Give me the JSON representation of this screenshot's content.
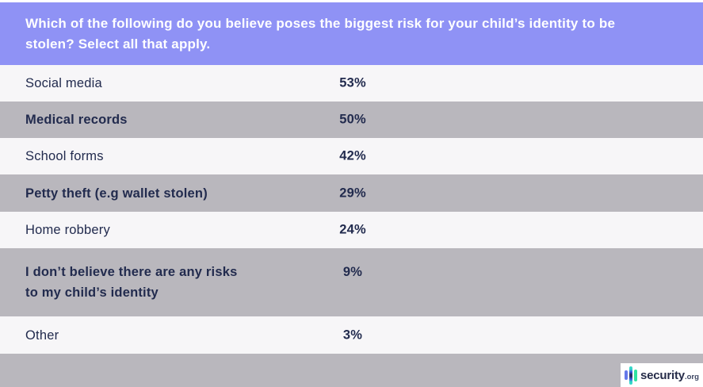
{
  "header": {
    "question_line1": "Which of the following do you believe poses the biggest risk for your child’s identity to be",
    "question_line2": "stolen? Select all that apply."
  },
  "chart_data": {
    "type": "table",
    "title": "Which of the following do you believe poses the biggest risk for your child’s identity to be stolen? Select all that apply.",
    "categories": [
      "Social media",
      "Medical records",
      "School forms",
      "Petty theft (e.g wallet stolen)",
      "Home robbery",
      "I don’t believe there are any risks to my child’s identity",
      "Other"
    ],
    "values": [
      53,
      50,
      42,
      29,
      24,
      9,
      3
    ],
    "unit": "%",
    "layout": "two-column table, shaded alternating rows, percentages center-aligned in right column"
  },
  "rows": [
    {
      "label": "Social media",
      "value": "53%"
    },
    {
      "label": "Medical records",
      "value": "50%"
    },
    {
      "label": "School forms",
      "value": "42%"
    },
    {
      "label": "Petty theft (e.g wallet stolen)",
      "value": "29%"
    },
    {
      "label": "Home robbery",
      "value": "24%"
    },
    {
      "label": "I don’t believe there are any risks\nto my child’s identity",
      "value": "9%"
    },
    {
      "label": "Other",
      "value": "3%"
    }
  ],
  "footer": {
    "brand_name": "security",
    "brand_tld": ".org"
  },
  "colors": {
    "header_bg": "#8f92f5",
    "header_text": "#ffffff",
    "row_light": "#f7f6f8",
    "row_shaded": "#b9b7bd",
    "row_text": "#222b4e",
    "footer_bg": "#b9b7bd",
    "logo_bar_blue": "#6478ea",
    "logo_bar_teal": "#35d6c8",
    "logo_bar_navy": "#252f66",
    "logo_bar_green": "#2fe3a1",
    "brand_text": "#262c49"
  }
}
